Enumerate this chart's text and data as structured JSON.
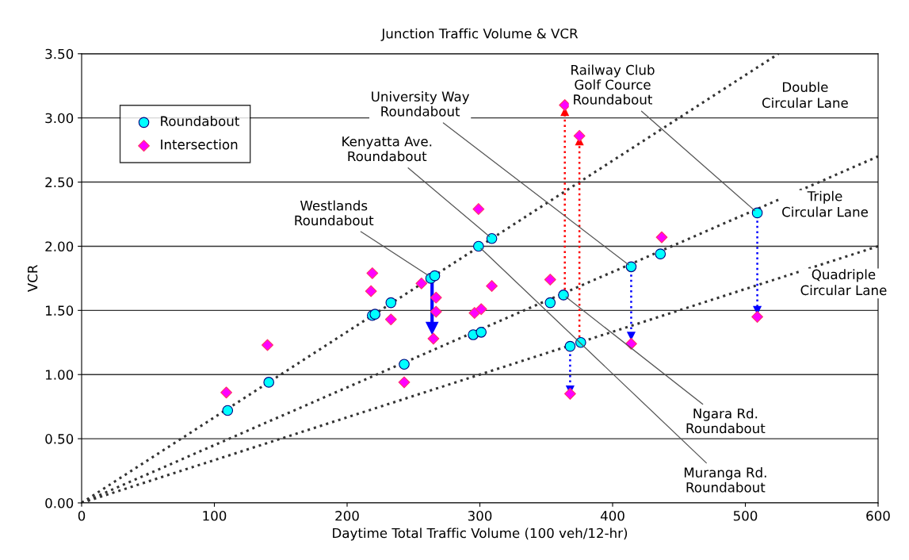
{
  "chart_data": {
    "type": "scatter",
    "title": "Junction Traffic Volume & VCR",
    "xlabel": "Daytime Total Traffic Volume (100 veh/12-hr)",
    "ylabel": "VCR",
    "xlim": [
      0,
      600
    ],
    "xticks": [
      0,
      100,
      200,
      300,
      400,
      500,
      600
    ],
    "ylim": [
      0,
      3.5
    ],
    "yticks": [
      {
        "value": 0,
        "label": "0.00"
      },
      {
        "value": 0.5,
        "label": "0.50"
      },
      {
        "value": 1.0,
        "label": "1.00"
      },
      {
        "value": 1.5,
        "label": "1.50"
      },
      {
        "value": 2.0,
        "label": "2.00"
      },
      {
        "value": 2.5,
        "label": "2.50"
      },
      {
        "value": 3.0,
        "label": "3.00"
      },
      {
        "value": 3.5,
        "label": "3.50"
      }
    ],
    "grid": "y",
    "legend": "top left",
    "series": [
      {
        "name": "Roundabout",
        "marker": "circle",
        "color": "#00ffff",
        "x": [
          110,
          141,
          219,
          221,
          233,
          243,
          263,
          266,
          295,
          301,
          299,
          309,
          353,
          363,
          368,
          376,
          414,
          436,
          509
        ],
        "values": [
          0.72,
          0.94,
          1.46,
          1.47,
          1.56,
          1.08,
          1.75,
          1.77,
          1.31,
          1.33,
          2.0,
          2.06,
          1.56,
          1.62,
          1.22,
          1.25,
          1.84,
          1.94,
          2.26
        ]
      },
      {
        "name": "Intersection",
        "marker": "diamond",
        "color": "#ff00ff",
        "x": [
          109,
          140,
          219,
          218,
          233,
          243,
          256,
          267,
          267,
          265,
          299,
          296,
          301,
          309,
          353,
          364,
          368,
          375,
          414,
          437,
          509
        ],
        "values": [
          0.86,
          1.23,
          1.79,
          1.65,
          1.43,
          0.94,
          1.71,
          1.6,
          1.49,
          1.28,
          2.29,
          1.48,
          1.51,
          1.69,
          1.74,
          3.1,
          0.85,
          2.86,
          1.24,
          2.07,
          1.45
        ]
      },
      {
        "name": "Double\nCircular Lane",
        "type": "line",
        "line_style": "dotted",
        "color": "#333333",
        "x": [
          0,
          525
        ],
        "values": [
          0,
          3.5
        ]
      },
      {
        "name": "Triple\nCircular Lane",
        "type": "line",
        "line_style": "dotted",
        "color": "#333333",
        "x": [
          0,
          600
        ],
        "values": [
          0,
          2.7
        ]
      },
      {
        "name": "Quadriple\nCircular Lane",
        "type": "line",
        "line_style": "dotted",
        "color": "#333333",
        "x": [
          0,
          600
        ],
        "values": [
          0,
          2.0
        ]
      },
      {
        "type": "line",
        "line_style": "solid",
        "color": "#0000ff",
        "x": [
          264,
          264
        ],
        "values": [
          1.74,
          1.36
        ]
      },
      {
        "type": "line",
        "line_style": "dotted",
        "color": "#0000ff",
        "x": [
          368,
          368
        ],
        "values": [
          1.2,
          0.88
        ]
      },
      {
        "type": "line",
        "line_style": "dotted",
        "color": "#ff0000",
        "x": [
          364,
          364
        ],
        "values": [
          1.62,
          3.05
        ]
      },
      {
        "type": "line",
        "line_style": "dotted",
        "color": "#ff0000",
        "x": [
          375,
          375
        ],
        "values": [
          1.25,
          2.82
        ]
      },
      {
        "type": "line",
        "line_style": "dotted",
        "color": "#0000ff",
        "x": [
          414,
          414
        ],
        "values": [
          1.82,
          1.3
        ]
      },
      {
        "type": "line",
        "line_style": "dotted",
        "color": "#0000ff",
        "x": [
          509,
          509
        ],
        "values": [
          2.24,
          1.5
        ]
      }
    ],
    "annotations": [
      {
        "text": "Westlands\nRoundabout",
        "x": 263,
        "y": 1.76
      },
      {
        "text": "Kenyatta Ave.\nRoundabout",
        "x": 309,
        "y": 2.06
      },
      {
        "text": "University Way\nRoundabout",
        "x": 414,
        "y": 1.84
      },
      {
        "text": "Railway Club\nGolf Cource\nRoundabout",
        "x": 509,
        "y": 2.26
      },
      {
        "text": "Ngara Rd.\nRoundabout",
        "x": 363,
        "y": 1.62
      },
      {
        "text": "Muranga Rd.\nRoundabout",
        "x": 299,
        "y": 2.0
      }
    ]
  }
}
